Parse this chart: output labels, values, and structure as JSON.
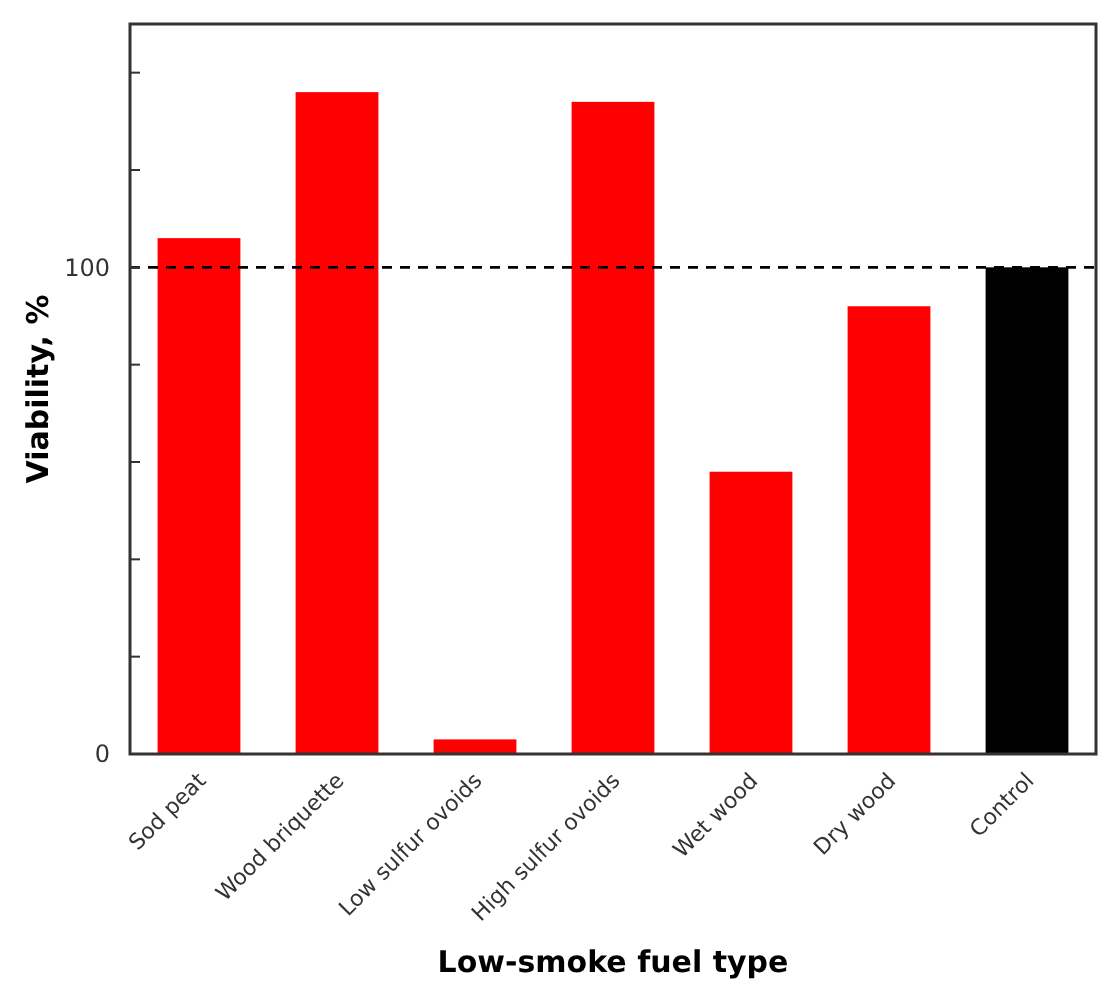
{
  "chart_data": {
    "type": "bar",
    "xlabel": "Low-smoke fuel type",
    "ylabel": "Viability, %",
    "categories": [
      "Sod peat",
      "Wood briquette",
      "Low sulfur ovoids",
      "High sulfur ovoids",
      "Wet wood",
      "Dry wood",
      "Control"
    ],
    "values": [
      106,
      136,
      3,
      134,
      58,
      92,
      100
    ],
    "colors": [
      "#ff0000",
      "#ff0000",
      "#ff0000",
      "#ff0000",
      "#ff0000",
      "#ff0000",
      "#000000"
    ],
    "ylim": [
      0,
      150
    ],
    "yticks": [
      0,
      {
        "value": 20,
        "label": null
      },
      {
        "value": 40,
        "label": null
      },
      {
        "value": 60,
        "label": null
      },
      {
        "value": 80,
        "label": null
      },
      100,
      {
        "value": 120,
        "label": null
      },
      {
        "value": 140,
        "label": null
      }
    ],
    "ref_lines": [
      {
        "axis": "y",
        "value": 100,
        "color": "#000000",
        "line_style": "dashed"
      }
    ],
    "grid": false
  }
}
